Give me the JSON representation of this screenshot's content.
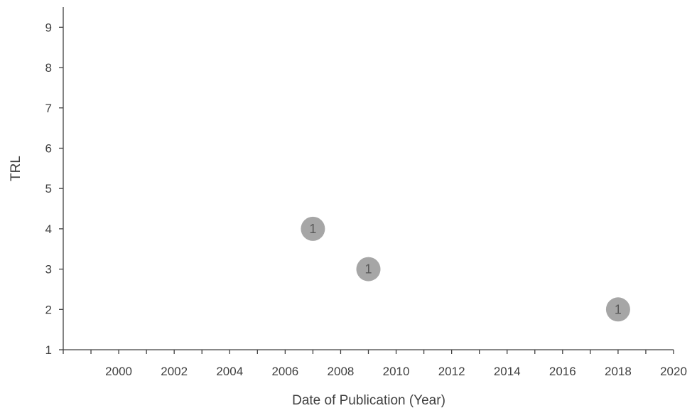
{
  "chart_data": {
    "type": "scatter",
    "title": "",
    "xlabel": "Date of Publication (Year)",
    "ylabel": "TRL",
    "xlim": [
      1998,
      2020
    ],
    "ylim": [
      1,
      9.5
    ],
    "x_ticks": [
      2000,
      2002,
      2004,
      2006,
      2008,
      2010,
      2012,
      2014,
      2016,
      2018,
      2020
    ],
    "y_ticks": [
      1,
      2,
      3,
      4,
      5,
      6,
      7,
      8,
      9
    ],
    "grid": false,
    "points": [
      {
        "x": 2007,
        "y": 4,
        "label": "1"
      },
      {
        "x": 2009,
        "y": 3,
        "label": "1"
      },
      {
        "x": 2018,
        "y": 2,
        "label": "1"
      }
    ],
    "colors": {
      "bubble": "#a6a6a6",
      "axis": "#404040",
      "text": "#404040"
    }
  }
}
